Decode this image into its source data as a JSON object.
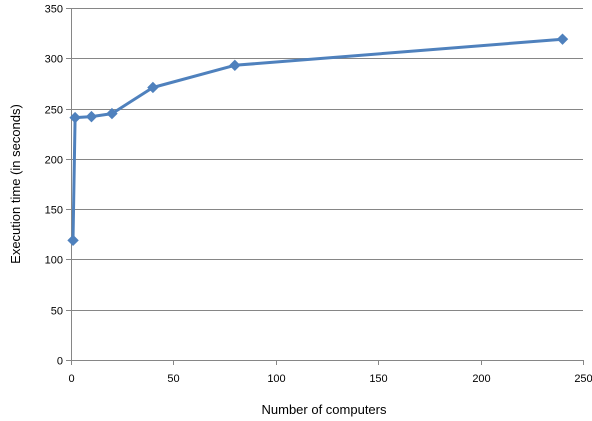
{
  "chart_data": {
    "type": "line",
    "title": "",
    "xlabel": "Number of computers",
    "ylabel": "Execution time (in seconds)",
    "xlim": [
      0,
      250
    ],
    "ylim": [
      0,
      350
    ],
    "xticks": [
      0,
      50,
      100,
      150,
      200,
      250
    ],
    "yticks": [
      0,
      50,
      100,
      150,
      200,
      250,
      300,
      350
    ],
    "grid": "horizontal",
    "legend": "none",
    "series": [
      {
        "color": "#4F81BD",
        "marker": "diamond",
        "points": [
          {
            "x": 1,
            "y": 119
          },
          {
            "x": 2,
            "y": 241
          },
          {
            "x": 10,
            "y": 242
          },
          {
            "x": 20,
            "y": 245
          },
          {
            "x": 40,
            "y": 271
          },
          {
            "x": 80,
            "y": 293
          },
          {
            "x": 240,
            "y": 319
          }
        ]
      }
    ]
  }
}
